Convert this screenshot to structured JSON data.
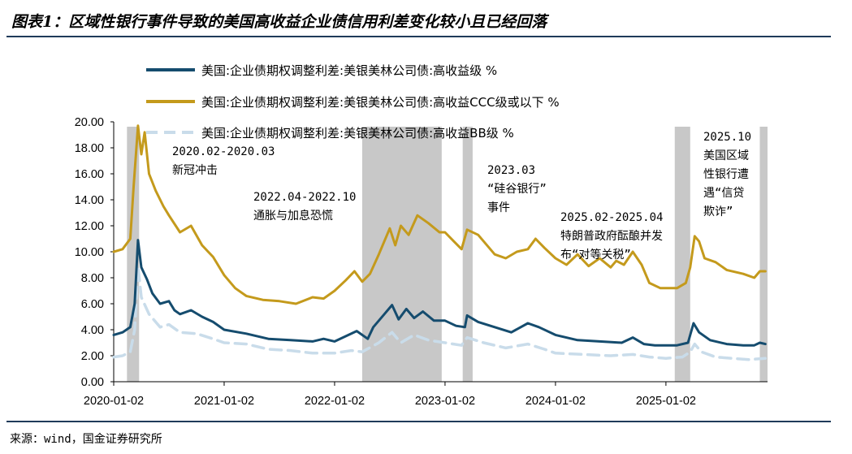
{
  "header": {
    "title": "图表1：区域性银行事件导致的美国高收益企业债信用利差变化较小且已经回落"
  },
  "footer": {
    "source": "来源：wind，国金证券研究所"
  },
  "colors": {
    "hy": "#154c6e",
    "ccc": "#c49a1c",
    "bb": "#c9dcea",
    "shade": "#c8c8c8"
  },
  "chart_data": {
    "type": "line",
    "title": "区域性银行事件导致的美国高收益企业债信用利差变化较小且已经回落",
    "xlabel": "",
    "ylabel": "",
    "ylim": [
      0,
      20
    ],
    "yticks": [
      "0.00",
      "2.00",
      "4.00",
      "6.00",
      "8.00",
      "10.00",
      "12.00",
      "14.00",
      "16.00",
      "18.00",
      "20.00"
    ],
    "xlim": [
      2020.0,
      2025.92
    ],
    "xticks": [
      {
        "x": 2020.0,
        "label": "2020-01-02"
      },
      {
        "x": 2021.0,
        "label": "2021-01-02"
      },
      {
        "x": 2022.0,
        "label": "2022-01-02"
      },
      {
        "x": 2023.0,
        "label": "2023-01-02"
      },
      {
        "x": 2024.0,
        "label": "2024-01-02"
      },
      {
        "x": 2025.0,
        "label": "2025-01-02"
      }
    ],
    "series": [
      {
        "name": "美国:企业债期权调整利差:美银美林公司债:高收益级 %",
        "color": "#154c6e",
        "dash": false,
        "points": [
          [
            2020.0,
            3.6
          ],
          [
            2020.08,
            3.8
          ],
          [
            2020.15,
            4.2
          ],
          [
            2020.19,
            6.0
          ],
          [
            2020.22,
            10.9
          ],
          [
            2020.25,
            8.8
          ],
          [
            2020.3,
            7.9
          ],
          [
            2020.35,
            6.8
          ],
          [
            2020.42,
            6.0
          ],
          [
            2020.5,
            6.2
          ],
          [
            2020.55,
            5.5
          ],
          [
            2020.6,
            5.2
          ],
          [
            2020.7,
            5.5
          ],
          [
            2020.8,
            5.0
          ],
          [
            2020.9,
            4.6
          ],
          [
            2021.0,
            4.0
          ],
          [
            2021.2,
            3.7
          ],
          [
            2021.4,
            3.3
          ],
          [
            2021.6,
            3.2
          ],
          [
            2021.8,
            3.1
          ],
          [
            2021.9,
            3.3
          ],
          [
            2022.0,
            3.1
          ],
          [
            2022.1,
            3.5
          ],
          [
            2022.2,
            3.9
          ],
          [
            2022.3,
            3.3
          ],
          [
            2022.35,
            4.2
          ],
          [
            2022.45,
            5.2
          ],
          [
            2022.52,
            5.9
          ],
          [
            2022.58,
            4.8
          ],
          [
            2022.65,
            5.6
          ],
          [
            2022.72,
            4.9
          ],
          [
            2022.8,
            5.4
          ],
          [
            2022.9,
            4.7
          ],
          [
            2023.0,
            4.7
          ],
          [
            2023.1,
            4.3
          ],
          [
            2023.18,
            4.2
          ],
          [
            2023.2,
            5.1
          ],
          [
            2023.3,
            4.6
          ],
          [
            2023.45,
            4.2
          ],
          [
            2023.6,
            3.8
          ],
          [
            2023.75,
            4.5
          ],
          [
            2023.85,
            4.2
          ],
          [
            2024.0,
            3.6
          ],
          [
            2024.2,
            3.2
          ],
          [
            2024.4,
            3.1
          ],
          [
            2024.6,
            3.0
          ],
          [
            2024.7,
            3.4
          ],
          [
            2024.8,
            2.9
          ],
          [
            2024.9,
            2.8
          ],
          [
            2025.0,
            2.8
          ],
          [
            2025.1,
            2.8
          ],
          [
            2025.2,
            3.0
          ],
          [
            2025.25,
            4.5
          ],
          [
            2025.3,
            3.8
          ],
          [
            2025.4,
            3.2
          ],
          [
            2025.55,
            2.9
          ],
          [
            2025.7,
            2.8
          ],
          [
            2025.8,
            2.8
          ],
          [
            2025.85,
            3.0
          ],
          [
            2025.9,
            2.9
          ]
        ]
      },
      {
        "name": "美国:企业债期权调整利差:美银美林公司债:高收益CCC级或以下 %",
        "color": "#c49a1c",
        "dash": false,
        "points": [
          [
            2020.0,
            10.0
          ],
          [
            2020.08,
            10.2
          ],
          [
            2020.15,
            11.0
          ],
          [
            2020.18,
            15.0
          ],
          [
            2020.22,
            19.7
          ],
          [
            2020.25,
            17.5
          ],
          [
            2020.28,
            19.2
          ],
          [
            2020.32,
            16.0
          ],
          [
            2020.38,
            14.7
          ],
          [
            2020.45,
            13.5
          ],
          [
            2020.5,
            12.8
          ],
          [
            2020.6,
            11.5
          ],
          [
            2020.7,
            12.0
          ],
          [
            2020.8,
            10.5
          ],
          [
            2020.9,
            9.6
          ],
          [
            2021.0,
            8.2
          ],
          [
            2021.1,
            7.2
          ],
          [
            2021.2,
            6.6
          ],
          [
            2021.35,
            6.3
          ],
          [
            2021.5,
            6.2
          ],
          [
            2021.65,
            6.0
          ],
          [
            2021.8,
            6.5
          ],
          [
            2021.9,
            6.4
          ],
          [
            2022.0,
            7.0
          ],
          [
            2022.1,
            7.8
          ],
          [
            2022.18,
            8.5
          ],
          [
            2022.25,
            7.7
          ],
          [
            2022.32,
            8.3
          ],
          [
            2022.4,
            9.8
          ],
          [
            2022.5,
            11.8
          ],
          [
            2022.55,
            10.5
          ],
          [
            2022.6,
            12.0
          ],
          [
            2022.67,
            11.3
          ],
          [
            2022.75,
            12.8
          ],
          [
            2022.85,
            12.2
          ],
          [
            2022.95,
            11.5
          ],
          [
            2023.0,
            11.5
          ],
          [
            2023.08,
            10.8
          ],
          [
            2023.15,
            10.2
          ],
          [
            2023.2,
            11.7
          ],
          [
            2023.3,
            11.3
          ],
          [
            2023.45,
            9.8
          ],
          [
            2023.55,
            9.5
          ],
          [
            2023.65,
            10.0
          ],
          [
            2023.75,
            10.2
          ],
          [
            2023.82,
            11.0
          ],
          [
            2023.9,
            10.3
          ],
          [
            2024.0,
            9.5
          ],
          [
            2024.1,
            9.0
          ],
          [
            2024.2,
            9.8
          ],
          [
            2024.3,
            8.9
          ],
          [
            2024.4,
            9.5
          ],
          [
            2024.5,
            8.8
          ],
          [
            2024.55,
            9.3
          ],
          [
            2024.62,
            9.0
          ],
          [
            2024.7,
            10.0
          ],
          [
            2024.78,
            9.0
          ],
          [
            2024.85,
            7.6
          ],
          [
            2024.95,
            7.2
          ],
          [
            2025.0,
            7.2
          ],
          [
            2025.1,
            7.2
          ],
          [
            2025.18,
            7.6
          ],
          [
            2025.22,
            8.8
          ],
          [
            2025.26,
            11.2
          ],
          [
            2025.3,
            10.8
          ],
          [
            2025.35,
            9.5
          ],
          [
            2025.45,
            9.2
          ],
          [
            2025.55,
            8.6
          ],
          [
            2025.7,
            8.3
          ],
          [
            2025.8,
            8.0
          ],
          [
            2025.85,
            8.5
          ],
          [
            2025.9,
            8.5
          ]
        ]
      },
      {
        "name": "美国:企业债期权调整利差:美银美林公司债:高收益BB级 %",
        "color": "#c9dcea",
        "dash": true,
        "points": [
          [
            2020.0,
            1.9
          ],
          [
            2020.08,
            2.0
          ],
          [
            2020.15,
            2.3
          ],
          [
            2020.19,
            4.0
          ],
          [
            2020.22,
            8.9
          ],
          [
            2020.25,
            6.5
          ],
          [
            2020.32,
            5.2
          ],
          [
            2020.42,
            4.2
          ],
          [
            2020.5,
            4.4
          ],
          [
            2020.6,
            3.8
          ],
          [
            2020.75,
            3.7
          ],
          [
            2020.9,
            3.3
          ],
          [
            2021.0,
            3.0
          ],
          [
            2021.2,
            2.9
          ],
          [
            2021.4,
            2.5
          ],
          [
            2021.6,
            2.4
          ],
          [
            2021.8,
            2.2
          ],
          [
            2022.0,
            2.2
          ],
          [
            2022.15,
            2.4
          ],
          [
            2022.25,
            2.3
          ],
          [
            2022.4,
            3.0
          ],
          [
            2022.52,
            3.8
          ],
          [
            2022.6,
            3.0
          ],
          [
            2022.72,
            3.6
          ],
          [
            2022.85,
            3.2
          ],
          [
            2023.0,
            3.0
          ],
          [
            2023.15,
            2.8
          ],
          [
            2023.2,
            3.4
          ],
          [
            2023.35,
            3.0
          ],
          [
            2023.55,
            2.6
          ],
          [
            2023.75,
            2.9
          ],
          [
            2023.9,
            2.5
          ],
          [
            2024.0,
            2.2
          ],
          [
            2024.25,
            2.1
          ],
          [
            2024.5,
            2.0
          ],
          [
            2024.7,
            2.1
          ],
          [
            2024.85,
            1.9
          ],
          [
            2025.0,
            1.8
          ],
          [
            2025.15,
            1.9
          ],
          [
            2025.22,
            2.3
          ],
          [
            2025.26,
            2.9
          ],
          [
            2025.32,
            2.3
          ],
          [
            2025.45,
            1.9
          ],
          [
            2025.6,
            1.8
          ],
          [
            2025.75,
            1.7
          ],
          [
            2025.9,
            1.8
          ]
        ]
      }
    ],
    "shaded_periods": [
      {
        "start": 2020.12,
        "end": 2020.23
      },
      {
        "start": 2022.25,
        "end": 2022.97
      },
      {
        "start": 2023.16,
        "end": 2023.25
      },
      {
        "start": 2025.08,
        "end": 2025.22
      },
      {
        "start": 2025.85,
        "end": 2025.92
      }
    ],
    "annotations": [
      {
        "lines": [
          "2020.02-2020.03",
          "新冠冲击"
        ]
      },
      {
        "lines": [
          "2022.04-2022.10",
          "通胀与加息恐慌"
        ]
      },
      {
        "lines": [
          "2023.03",
          "“硅谷银行”",
          "事件"
        ]
      },
      {
        "lines": [
          "2025.02-2025.04",
          "特朗普政府酝酿并发",
          "布“对等关税”"
        ]
      },
      {
        "lines": [
          "2025.10",
          "美国区域",
          "性银行遭",
          "遇“信贷",
          "欺诈”"
        ]
      }
    ]
  }
}
